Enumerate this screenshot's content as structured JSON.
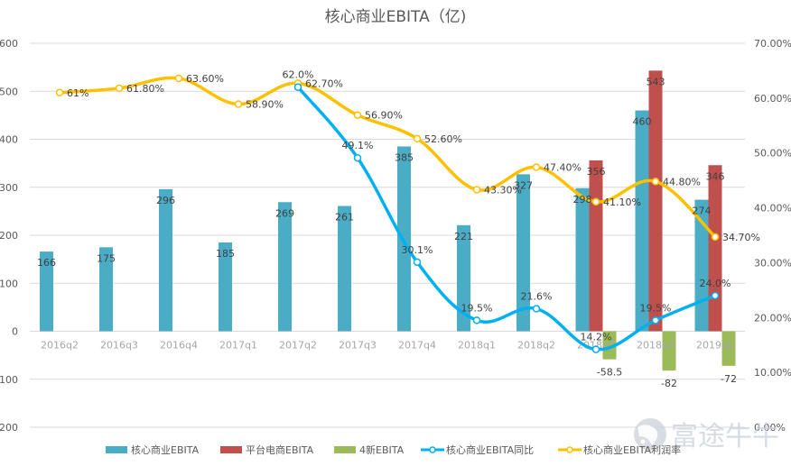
{
  "chart_data": {
    "type": "bar",
    "title": "核心商业EBITA（亿)",
    "categories": [
      "2016q2",
      "2016q3",
      "2016q4",
      "2017q1",
      "2017q2",
      "2017q3",
      "2017q4",
      "2018q1",
      "2018q2",
      "2018q3",
      "2018q4",
      "2019q1"
    ],
    "left_axis": {
      "min": -200,
      "max": 600,
      "step": 100,
      "ticks": [
        "600",
        "500",
        "400",
        "300",
        "200",
        "100",
        "0",
        "-100",
        "-200"
      ]
    },
    "right_axis": {
      "min": 0,
      "max": 70,
      "step": 10,
      "ticks": [
        "70.00%",
        "60.00%",
        "50.00%",
        "40.00%",
        "30.00%",
        "20.00%",
        "10.00%",
        "0.00%"
      ]
    },
    "grid": true,
    "legend_position": "bottom",
    "series": [
      {
        "name": "核心商业EBITA",
        "kind": "bar",
        "axis": "left",
        "color": "#4BACC6",
        "values": [
          166,
          175,
          296,
          185,
          269,
          261,
          385,
          221,
          327,
          298,
          460,
          274
        ],
        "labels": [
          "166",
          "175",
          "296",
          "185",
          "269",
          "261",
          "385",
          "221",
          "327",
          "298",
          "460",
          "274"
        ]
      },
      {
        "name": "平台电商EBITA",
        "kind": "bar",
        "axis": "left",
        "color": "#C0504D",
        "values": [
          null,
          null,
          null,
          null,
          null,
          null,
          null,
          null,
          null,
          356,
          543,
          346
        ],
        "labels": [
          null,
          null,
          null,
          null,
          null,
          null,
          null,
          null,
          null,
          "356",
          "543",
          "346"
        ]
      },
      {
        "name": "4新EBITA",
        "kind": "bar",
        "axis": "left",
        "color": "#9BBB59",
        "values": [
          null,
          null,
          null,
          null,
          null,
          null,
          null,
          null,
          null,
          -58.5,
          -82,
          -72
        ],
        "labels": [
          null,
          null,
          null,
          null,
          null,
          null,
          null,
          null,
          null,
          "-58.5",
          "-82",
          "-72"
        ]
      },
      {
        "name": "核心商业EBITA同比",
        "kind": "line",
        "axis": "right",
        "color": "#00B0F0",
        "values": [
          null,
          null,
          null,
          null,
          62.0,
          49.1,
          30.1,
          19.5,
          21.6,
          14.2,
          19.5,
          24.0
        ],
        "labels": [
          null,
          null,
          null,
          null,
          "62.0%",
          "49.1%",
          "30.1%",
          "19.5%",
          "21.6%",
          "14.2%",
          "19.5%",
          "24.0%"
        ]
      },
      {
        "name": "核心商业EBITA利润率",
        "kind": "line",
        "axis": "right",
        "color": "#FFC000",
        "values": [
          61,
          61.8,
          63.6,
          58.9,
          62.7,
          56.9,
          52.6,
          43.3,
          47.4,
          41.1,
          44.8,
          34.7
        ],
        "labels": [
          "61%",
          "61.80%",
          "63.60%",
          "58.90%",
          "62.70%",
          "56.90%",
          "52.60%",
          "43.30%",
          "47.40%",
          "41.10%",
          "44.80%",
          "34.70%"
        ]
      }
    ]
  },
  "watermark": {
    "text": "富途牛牛",
    "icon": "futu-logo-icon"
  }
}
